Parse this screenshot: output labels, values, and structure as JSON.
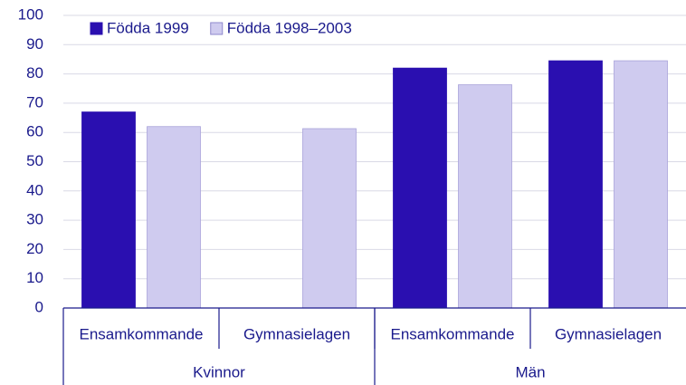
{
  "chart_data": {
    "type": "bar",
    "groups": [
      "Kvinnor",
      "Män"
    ],
    "categories": [
      "Ensamkommande",
      "Gymnasielagen",
      "Ensamkommande",
      "Gymnasielagen"
    ],
    "series": [
      {
        "name": "Födda 1999",
        "color": "#2a0fb0",
        "values": [
          67,
          null,
          82,
          84.5
        ]
      },
      {
        "name": "Födda 1998–2003",
        "color": "#cfcbef",
        "values": [
          62,
          61.3,
          76.3,
          84.5
        ]
      }
    ],
    "ylim": [
      0,
      100
    ],
    "yticks": [
      0,
      10,
      20,
      30,
      40,
      50,
      60,
      70,
      80,
      90,
      100
    ],
    "grid": true,
    "legend": "top-left"
  }
}
